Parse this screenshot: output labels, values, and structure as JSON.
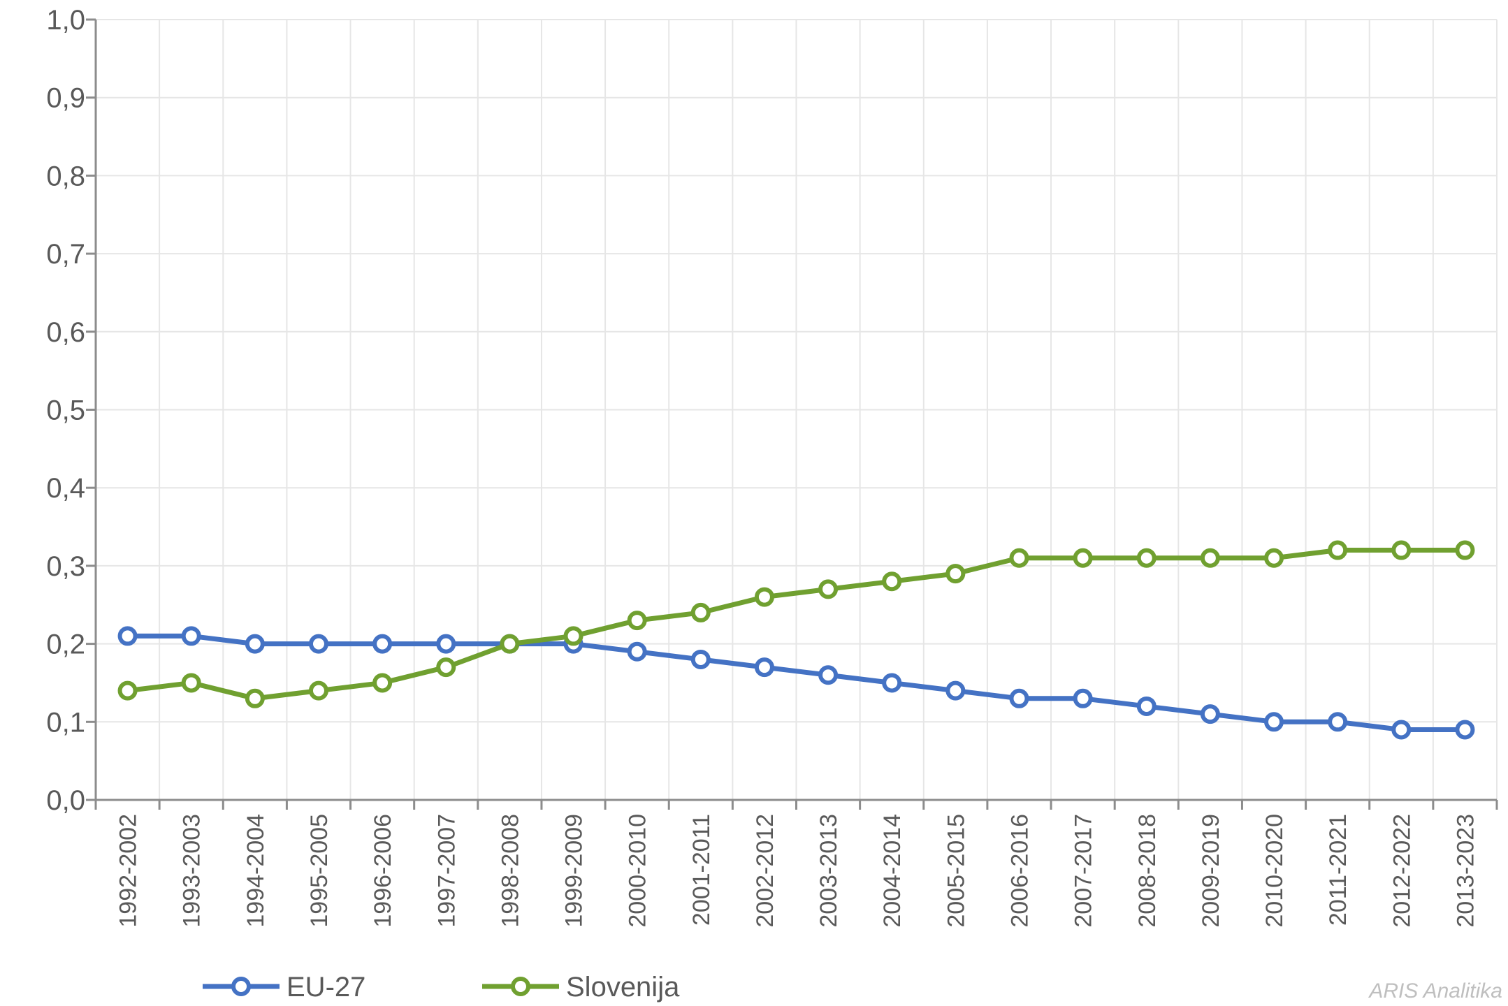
{
  "chart_data": {
    "type": "line",
    "title": "",
    "xlabel": "",
    "ylabel": "",
    "categories": [
      "1992-2002",
      "1993-2003",
      "1994-2004",
      "1995-2005",
      "1996-2006",
      "1997-2007",
      "1998-2008",
      "1999-2009",
      "2000-2010",
      "2001-2011",
      "2002-2012",
      "2003-2013",
      "2004-2014",
      "2005-2015",
      "2006-2016",
      "2007-2017",
      "2008-2018",
      "2009-2019",
      "2010-2020",
      "2011-2021",
      "2012-2022",
      "2013-2023"
    ],
    "ylim": [
      0,
      1.0
    ],
    "yticks": [
      "0,0",
      "0,1",
      "0,2",
      "0,3",
      "0,4",
      "0,5",
      "0,6",
      "0,7",
      "0,8",
      "0,9",
      "1,0"
    ],
    "grid": true,
    "legend_position": "bottom",
    "series": [
      {
        "name": "EU-27",
        "color": "#4472c4",
        "values": [
          0.21,
          0.21,
          0.2,
          0.2,
          0.2,
          0.2,
          0.2,
          0.2,
          0.19,
          0.18,
          0.17,
          0.16,
          0.15,
          0.14,
          0.13,
          0.13,
          0.12,
          0.11,
          0.1,
          0.1,
          0.09,
          0.09
        ]
      },
      {
        "name": "Slovenija",
        "color": "#70a030",
        "values": [
          0.14,
          0.15,
          0.13,
          0.14,
          0.15,
          0.17,
          0.2,
          0.21,
          0.23,
          0.24,
          0.26,
          0.27,
          0.28,
          0.29,
          0.31,
          0.31,
          0.31,
          0.31,
          0.31,
          0.32,
          0.32,
          0.32
        ]
      }
    ]
  },
  "watermark": "ARIS Analitika"
}
